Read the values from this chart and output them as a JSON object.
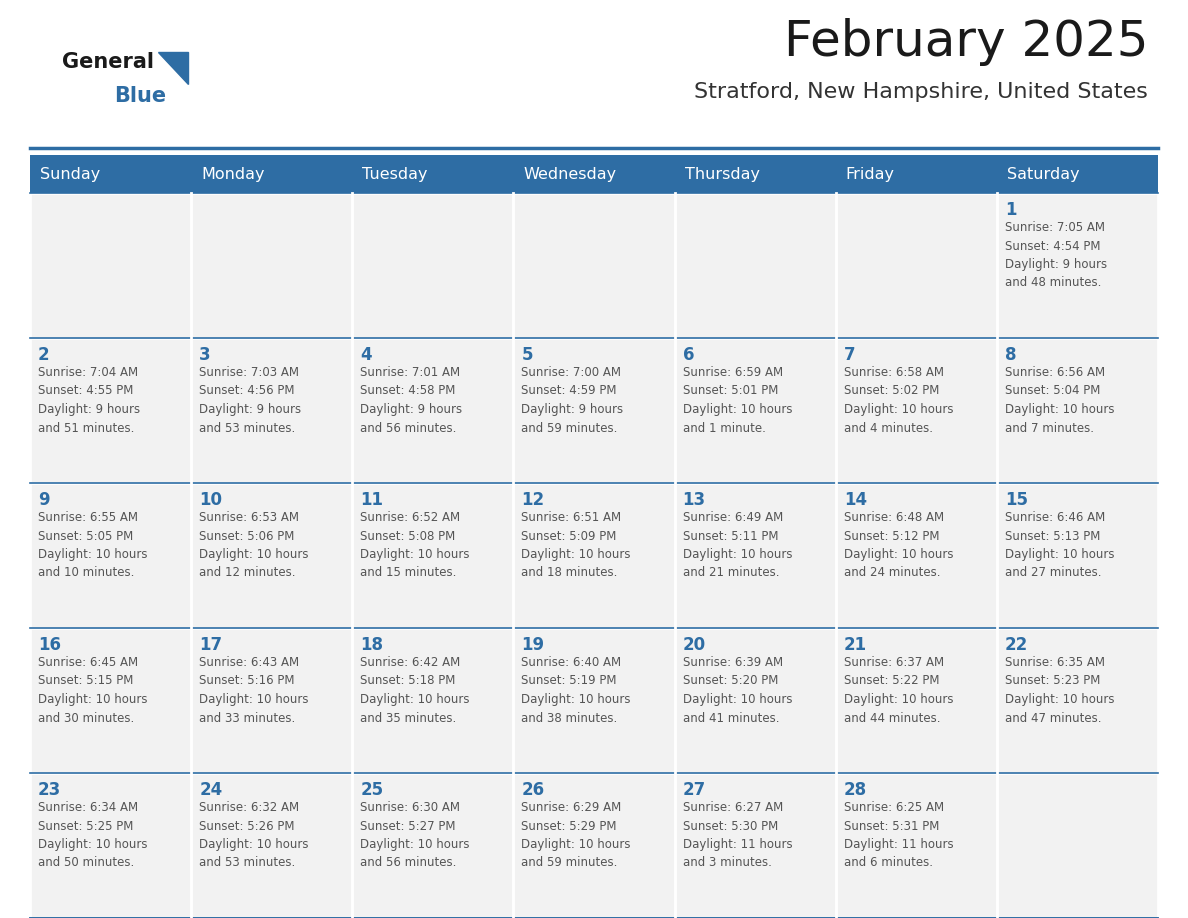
{
  "title": "February 2025",
  "subtitle": "Stratford, New Hampshire, United States",
  "days_of_week": [
    "Sunday",
    "Monday",
    "Tuesday",
    "Wednesday",
    "Thursday",
    "Friday",
    "Saturday"
  ],
  "header_bg": "#2E6DA4",
  "header_text": "#FFFFFF",
  "cell_bg": "#F2F2F2",
  "day_num_color": "#2E6DA4",
  "text_color": "#555555",
  "line_color": "#2E6DA4",
  "calendar_data": [
    [
      {
        "day": null,
        "info": ""
      },
      {
        "day": null,
        "info": ""
      },
      {
        "day": null,
        "info": ""
      },
      {
        "day": null,
        "info": ""
      },
      {
        "day": null,
        "info": ""
      },
      {
        "day": null,
        "info": ""
      },
      {
        "day": 1,
        "info": "Sunrise: 7:05 AM\nSunset: 4:54 PM\nDaylight: 9 hours\nand 48 minutes."
      }
    ],
    [
      {
        "day": 2,
        "info": "Sunrise: 7:04 AM\nSunset: 4:55 PM\nDaylight: 9 hours\nand 51 minutes."
      },
      {
        "day": 3,
        "info": "Sunrise: 7:03 AM\nSunset: 4:56 PM\nDaylight: 9 hours\nand 53 minutes."
      },
      {
        "day": 4,
        "info": "Sunrise: 7:01 AM\nSunset: 4:58 PM\nDaylight: 9 hours\nand 56 minutes."
      },
      {
        "day": 5,
        "info": "Sunrise: 7:00 AM\nSunset: 4:59 PM\nDaylight: 9 hours\nand 59 minutes."
      },
      {
        "day": 6,
        "info": "Sunrise: 6:59 AM\nSunset: 5:01 PM\nDaylight: 10 hours\nand 1 minute."
      },
      {
        "day": 7,
        "info": "Sunrise: 6:58 AM\nSunset: 5:02 PM\nDaylight: 10 hours\nand 4 minutes."
      },
      {
        "day": 8,
        "info": "Sunrise: 6:56 AM\nSunset: 5:04 PM\nDaylight: 10 hours\nand 7 minutes."
      }
    ],
    [
      {
        "day": 9,
        "info": "Sunrise: 6:55 AM\nSunset: 5:05 PM\nDaylight: 10 hours\nand 10 minutes."
      },
      {
        "day": 10,
        "info": "Sunrise: 6:53 AM\nSunset: 5:06 PM\nDaylight: 10 hours\nand 12 minutes."
      },
      {
        "day": 11,
        "info": "Sunrise: 6:52 AM\nSunset: 5:08 PM\nDaylight: 10 hours\nand 15 minutes."
      },
      {
        "day": 12,
        "info": "Sunrise: 6:51 AM\nSunset: 5:09 PM\nDaylight: 10 hours\nand 18 minutes."
      },
      {
        "day": 13,
        "info": "Sunrise: 6:49 AM\nSunset: 5:11 PM\nDaylight: 10 hours\nand 21 minutes."
      },
      {
        "day": 14,
        "info": "Sunrise: 6:48 AM\nSunset: 5:12 PM\nDaylight: 10 hours\nand 24 minutes."
      },
      {
        "day": 15,
        "info": "Sunrise: 6:46 AM\nSunset: 5:13 PM\nDaylight: 10 hours\nand 27 minutes."
      }
    ],
    [
      {
        "day": 16,
        "info": "Sunrise: 6:45 AM\nSunset: 5:15 PM\nDaylight: 10 hours\nand 30 minutes."
      },
      {
        "day": 17,
        "info": "Sunrise: 6:43 AM\nSunset: 5:16 PM\nDaylight: 10 hours\nand 33 minutes."
      },
      {
        "day": 18,
        "info": "Sunrise: 6:42 AM\nSunset: 5:18 PM\nDaylight: 10 hours\nand 35 minutes."
      },
      {
        "day": 19,
        "info": "Sunrise: 6:40 AM\nSunset: 5:19 PM\nDaylight: 10 hours\nand 38 minutes."
      },
      {
        "day": 20,
        "info": "Sunrise: 6:39 AM\nSunset: 5:20 PM\nDaylight: 10 hours\nand 41 minutes."
      },
      {
        "day": 21,
        "info": "Sunrise: 6:37 AM\nSunset: 5:22 PM\nDaylight: 10 hours\nand 44 minutes."
      },
      {
        "day": 22,
        "info": "Sunrise: 6:35 AM\nSunset: 5:23 PM\nDaylight: 10 hours\nand 47 minutes."
      }
    ],
    [
      {
        "day": 23,
        "info": "Sunrise: 6:34 AM\nSunset: 5:25 PM\nDaylight: 10 hours\nand 50 minutes."
      },
      {
        "day": 24,
        "info": "Sunrise: 6:32 AM\nSunset: 5:26 PM\nDaylight: 10 hours\nand 53 minutes."
      },
      {
        "day": 25,
        "info": "Sunrise: 6:30 AM\nSunset: 5:27 PM\nDaylight: 10 hours\nand 56 minutes."
      },
      {
        "day": 26,
        "info": "Sunrise: 6:29 AM\nSunset: 5:29 PM\nDaylight: 10 hours\nand 59 minutes."
      },
      {
        "day": 27,
        "info": "Sunrise: 6:27 AM\nSunset: 5:30 PM\nDaylight: 11 hours\nand 3 minutes."
      },
      {
        "day": 28,
        "info": "Sunrise: 6:25 AM\nSunset: 5:31 PM\nDaylight: 11 hours\nand 6 minutes."
      },
      {
        "day": null,
        "info": ""
      }
    ]
  ]
}
